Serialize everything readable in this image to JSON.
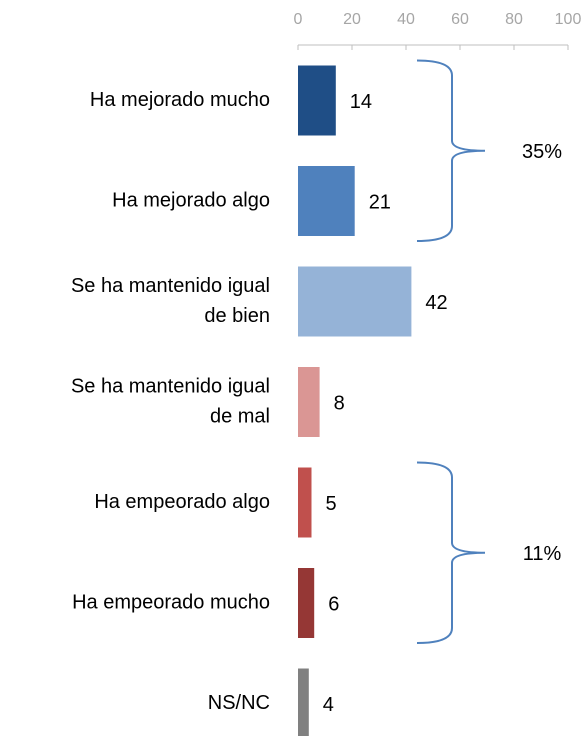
{
  "chart_data": {
    "type": "bar",
    "orientation": "horizontal",
    "categories": [
      [
        "Ha mejorado mucho"
      ],
      [
        "Ha mejorado algo"
      ],
      [
        "Se ha mantenido igual",
        "de bien"
      ],
      [
        "Se ha mantenido igual",
        "de mal"
      ],
      [
        "Ha empeorado algo"
      ],
      [
        "Ha empeorado mucho"
      ],
      [
        "NS/NC"
      ]
    ],
    "values": [
      14,
      21,
      42,
      8,
      5,
      6,
      4
    ],
    "colors": [
      "#1f4e86",
      "#4f81bd",
      "#95b3d7",
      "#da9694",
      "#c0504d",
      "#953735",
      "#808080"
    ],
    "xlim": [
      0,
      100
    ],
    "xticks": [
      0,
      20,
      40,
      60,
      80,
      100
    ],
    "annotations": [
      {
        "text": "35%",
        "from": 0,
        "to": 1
      },
      {
        "text": "11%",
        "from": 4,
        "to": 5
      }
    ]
  }
}
